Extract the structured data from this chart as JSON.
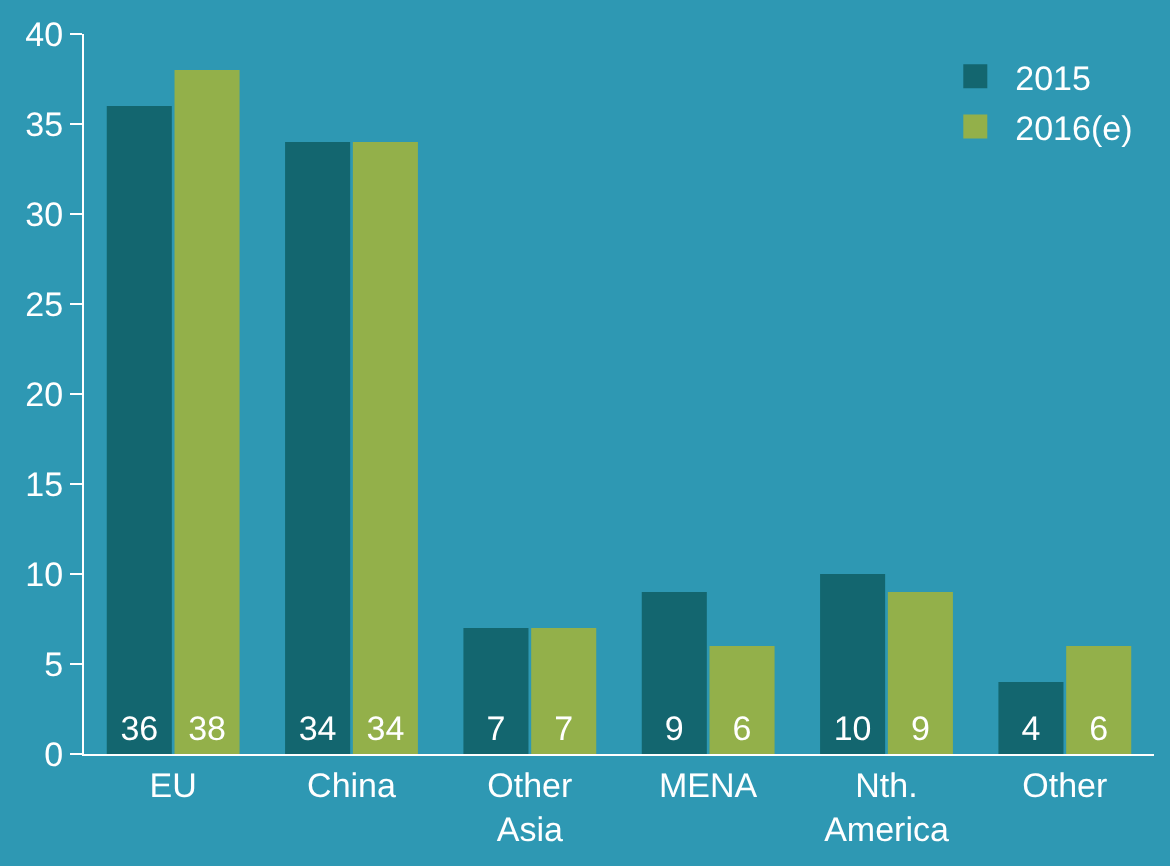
{
  "chart_data": {
    "type": "bar",
    "categories": [
      "EU",
      "China",
      "Other\nAsia",
      "MENA",
      "Nth.\nAmerica",
      "Other"
    ],
    "series": [
      {
        "name": "2015",
        "color": "#13666f",
        "values": [
          36,
          34,
          7,
          9,
          10,
          4
        ]
      },
      {
        "name": "2016(e)",
        "color": "#93b04a",
        "values": [
          38,
          34,
          7,
          6,
          9,
          6
        ]
      }
    ],
    "ylim": [
      0,
      40
    ],
    "yticks": [
      0,
      5,
      10,
      15,
      20,
      25,
      30,
      35,
      40
    ],
    "grid": false,
    "legend": "top right",
    "data_labels": true
  }
}
